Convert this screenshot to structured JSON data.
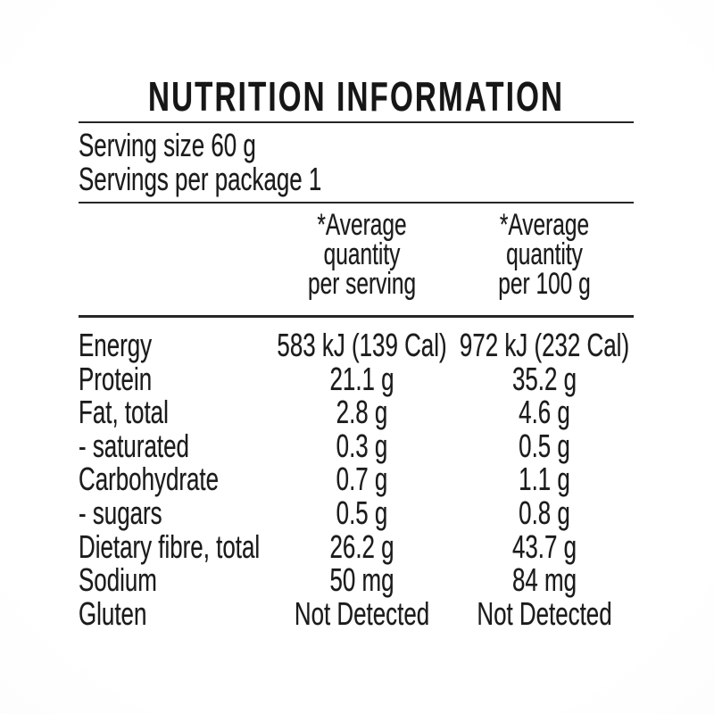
{
  "nutrition": {
    "title": "NUTRITION INFORMATION",
    "serving_size": "Serving size 60 g",
    "servings_per_package": "Servings per package 1",
    "columns": [
      {
        "label": "*Average quantity per serving",
        "lines": [
          "*Average",
          "quantity",
          "per serving"
        ]
      },
      {
        "label": "*Average quantity per 100 g",
        "lines": [
          "*Average",
          "quantity",
          "per 100 g"
        ]
      }
    ],
    "rows": [
      {
        "nutrient": "Energy",
        "per_serving": "583 kJ (139 Cal)",
        "per_100g": "972 kJ (232 Cal)"
      },
      {
        "nutrient": "Protein",
        "per_serving": "21.1 g",
        "per_100g": "35.2 g"
      },
      {
        "nutrient": "Fat, total",
        "per_serving": "2.8 g",
        "per_100g": "4.6 g"
      },
      {
        "nutrient": "- saturated",
        "per_serving": "0.3 g",
        "per_100g": "0.5 g"
      },
      {
        "nutrient": "Carbohydrate",
        "per_serving": "0.7 g",
        "per_100g": "1.1 g"
      },
      {
        "nutrient": "- sugars",
        "per_serving": "0.5 g",
        "per_100g": "0.8 g"
      },
      {
        "nutrient": "Dietary fibre, total",
        "per_serving": "26.2 g",
        "per_100g": "43.7 g"
      },
      {
        "nutrient": "Sodium",
        "per_serving": "50 mg",
        "per_100g": "84 mg"
      },
      {
        "nutrient": "Gluten",
        "per_serving": "Not Detected",
        "per_100g": "Not Detected"
      }
    ]
  },
  "colors": {
    "background": "#ffffff",
    "text": "#1b1b1b",
    "rule": "#262626"
  }
}
